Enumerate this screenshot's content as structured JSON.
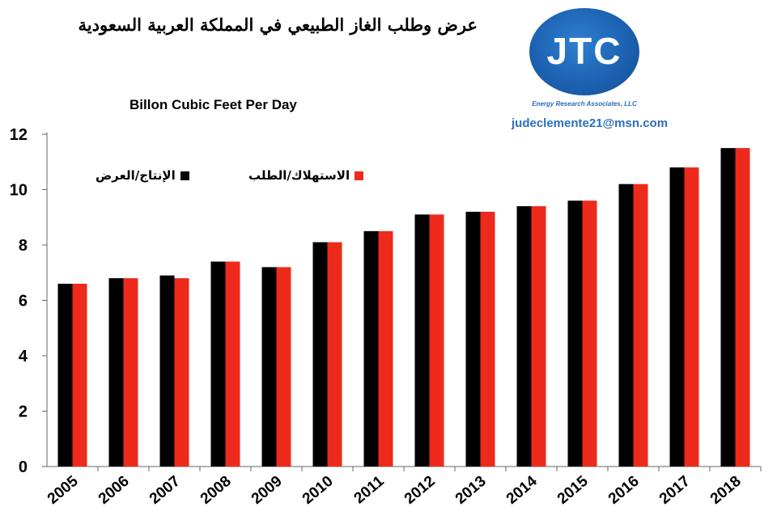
{
  "header": {
    "title": "عرض وطلب الغاز الطبيعي في المملكة العربية السعودية",
    "logo_text": "JTC",
    "logo_caption": "Energy Research Associates, LLC",
    "email": "judeclemente21@msn.com"
  },
  "legend": {
    "supply_label": "الإنتاج/العرض",
    "demand_label": "الاستهلاك/الطلب"
  },
  "colors": {
    "supply": "#000000",
    "demand": "#ee2a1c",
    "logo_blue": "#1b5fae"
  },
  "chart_data": {
    "type": "bar",
    "title": "Billon Cubic Feet Per Day",
    "categories": [
      "2005",
      "2006",
      "2007",
      "2008",
      "2009",
      "2010",
      "2011",
      "2012",
      "2013",
      "2014",
      "2015",
      "2016",
      "2017",
      "2018"
    ],
    "series": [
      {
        "name": "الإنتاج/العرض",
        "values": [
          6.6,
          6.8,
          6.9,
          7.4,
          7.2,
          8.1,
          8.5,
          9.1,
          9.2,
          9.4,
          9.6,
          10.2,
          10.8,
          11.5
        ]
      },
      {
        "name": "الاستهلاك/الطلب",
        "values": [
          6.6,
          6.8,
          6.8,
          7.4,
          7.2,
          8.1,
          8.5,
          9.1,
          9.2,
          9.4,
          9.6,
          10.2,
          10.8,
          11.5
        ]
      }
    ],
    "yticks": [
      0,
      2,
      4,
      6,
      8,
      10,
      12
    ],
    "ylim": [
      0,
      12
    ],
    "legend_position": "top-left"
  }
}
